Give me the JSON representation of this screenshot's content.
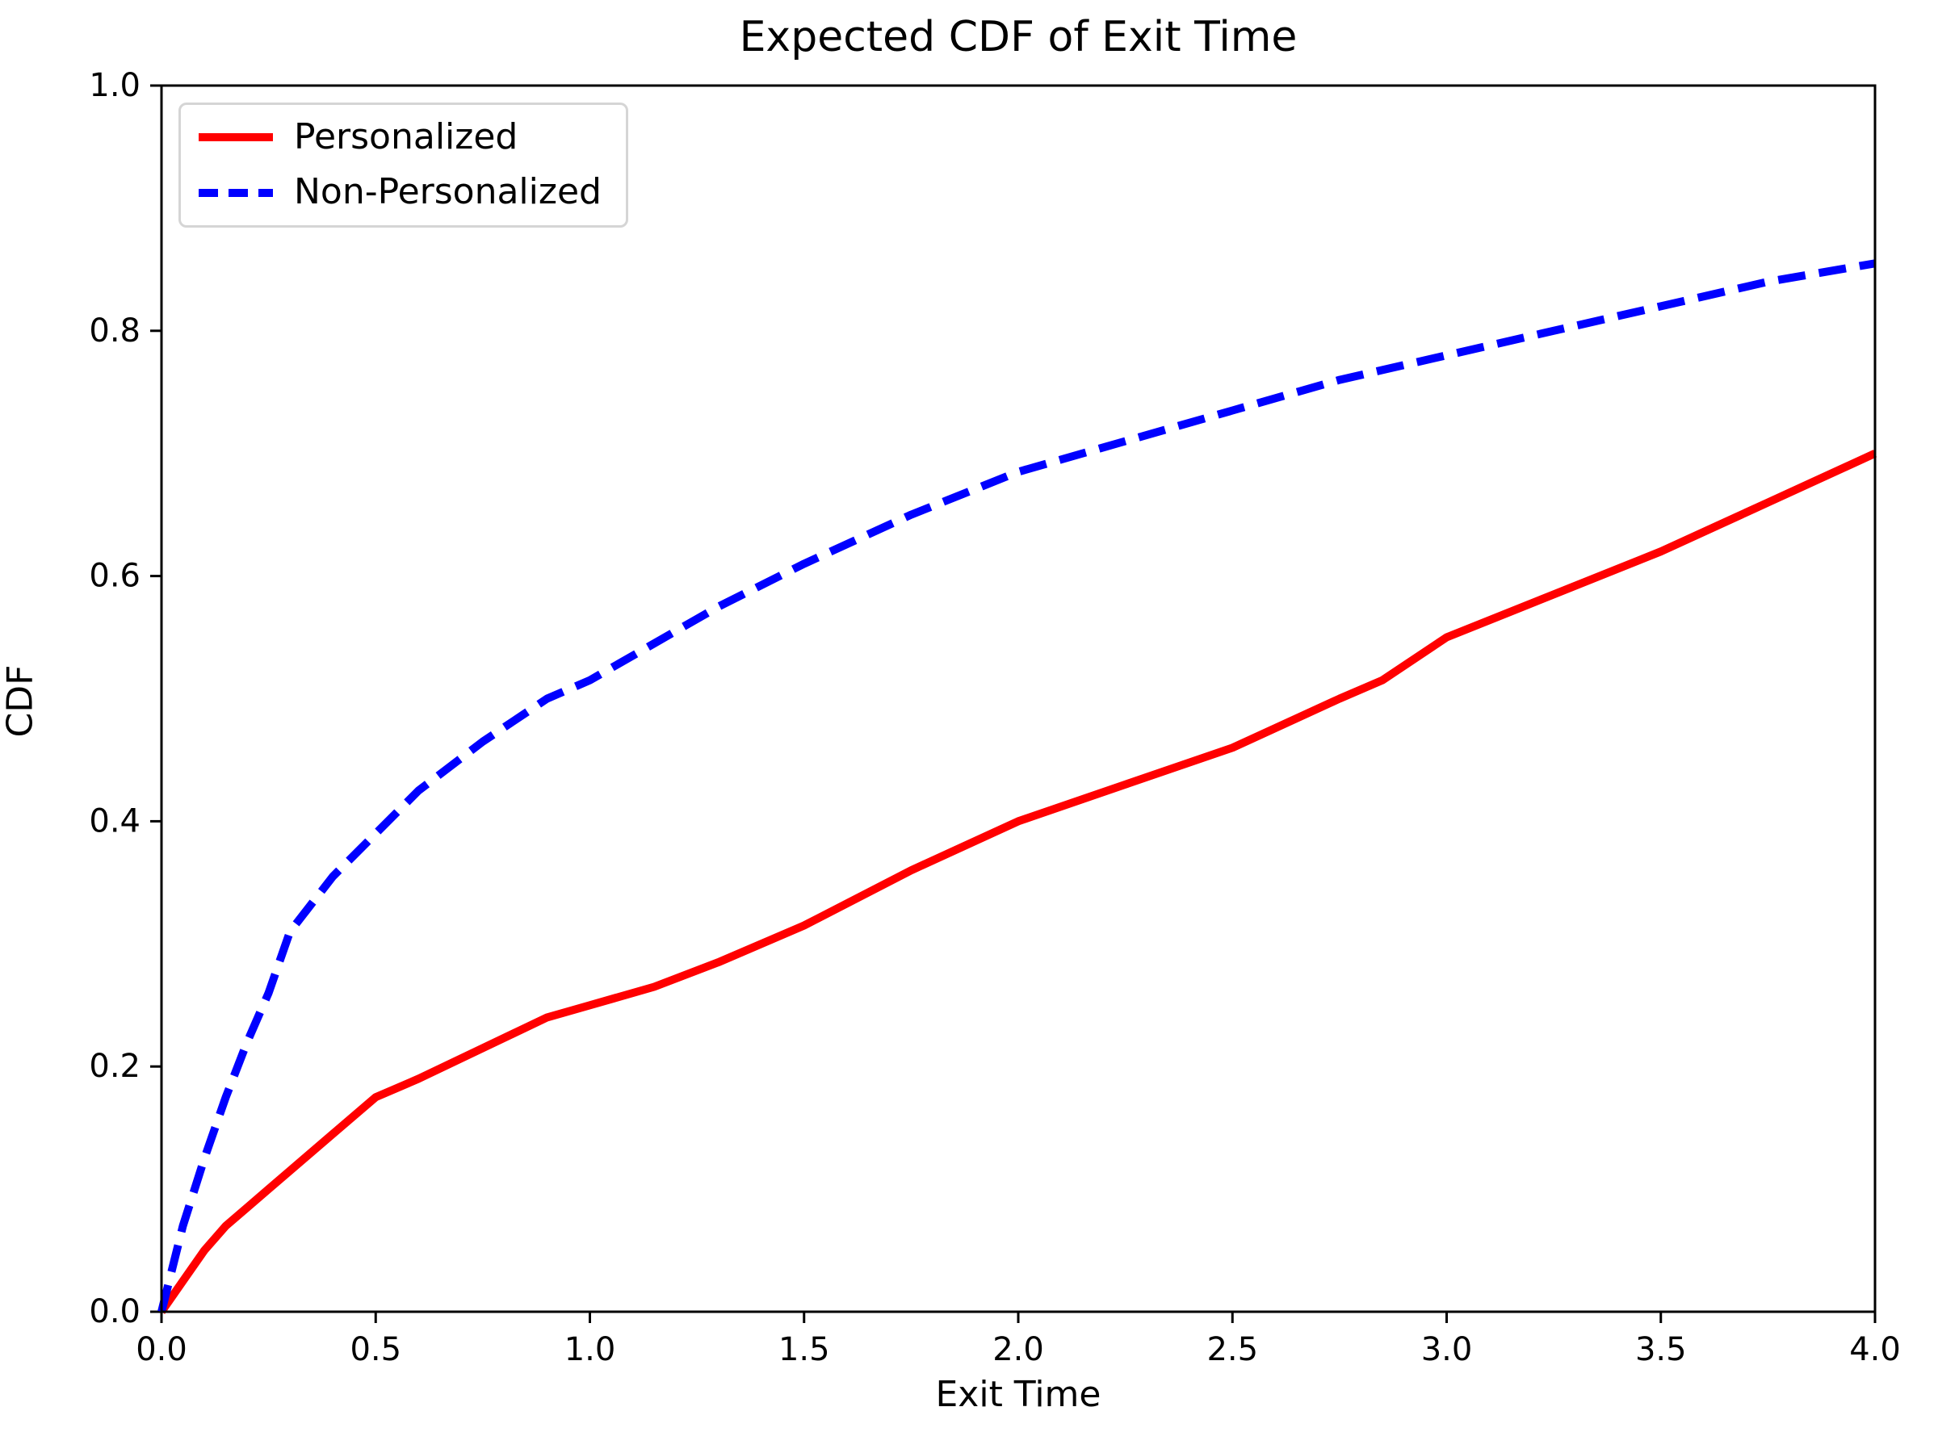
{
  "chart_data": {
    "type": "line",
    "title": "Expected CDF of Exit Time",
    "xlabel": "Exit Time",
    "ylabel": "CDF",
    "xlim": [
      0.0,
      4.0
    ],
    "ylim": [
      0.0,
      1.0
    ],
    "grid": false,
    "legend_position": "upper left",
    "x_ticks": [
      0.0,
      0.5,
      1.0,
      1.5,
      2.0,
      2.5,
      3.0,
      3.5,
      4.0
    ],
    "x_tick_labels": [
      "0.0",
      "0.5",
      "1.0",
      "1.5",
      "2.0",
      "2.5",
      "3.0",
      "3.5",
      "4.0"
    ],
    "y_ticks": [
      0.0,
      0.2,
      0.4,
      0.6,
      0.8,
      1.0
    ],
    "y_tick_labels": [
      "0.0",
      "0.2",
      "0.4",
      "0.6",
      "0.8",
      "1.0"
    ],
    "x": [
      0,
      0.05,
      0.1,
      0.15,
      0.2,
      0.25,
      0.3,
      0.4,
      0.5,
      0.6,
      0.75,
      0.9,
      1.0,
      1.15,
      1.3,
      1.5,
      1.75,
      2.0,
      2.25,
      2.5,
      2.75,
      2.85,
      3.0,
      3.25,
      3.5,
      3.75,
      4.0
    ],
    "series": [
      {
        "name": "Personalized",
        "color": "#ff0000",
        "style": "solid",
        "values": [
          0,
          0.025,
          0.05,
          0.07,
          0.085,
          0.1,
          0.115,
          0.145,
          0.175,
          0.19,
          0.215,
          0.24,
          0.25,
          0.265,
          0.285,
          0.315,
          0.36,
          0.4,
          0.43,
          0.46,
          0.5,
          0.515,
          0.55,
          0.585,
          0.62,
          0.66,
          0.7
        ]
      },
      {
        "name": "Non-Personalized",
        "color": "#0000ff",
        "style": "dashed",
        "values": [
          0,
          0.07,
          0.125,
          0.175,
          0.22,
          0.26,
          0.31,
          0.355,
          0.39,
          0.425,
          0.465,
          0.5,
          0.515,
          0.545,
          0.575,
          0.61,
          0.65,
          0.685,
          0.71,
          0.735,
          0.76,
          0.768,
          0.78,
          0.8,
          0.82,
          0.84,
          0.855
        ]
      }
    ]
  }
}
